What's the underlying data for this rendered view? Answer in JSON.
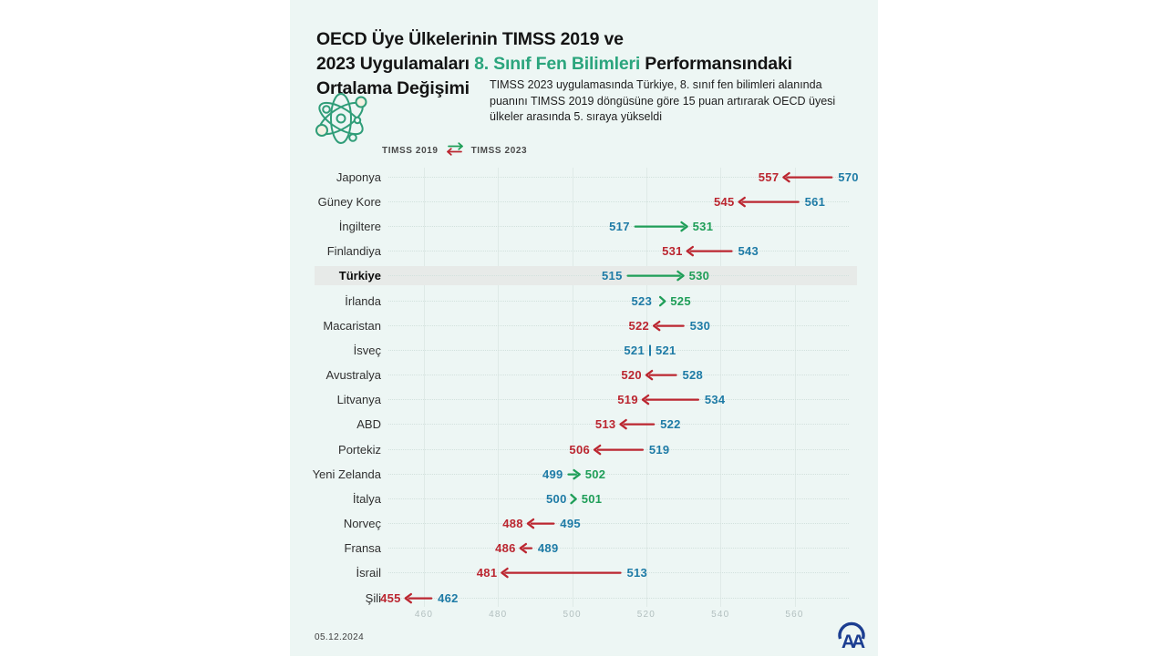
{
  "header": {
    "title_line1": "OECD Üye Ülkelerinin TIMSS 2019 ve",
    "title_line2_pre": "2023 Uygulamaları ",
    "title_line2_highlight": "8. Sınıf Fen Bilimleri",
    "title_line2_post": " Performansındaki",
    "title_line3": "Ortalama Değişimi",
    "subtitle": "TIMSS 2023 uygulamasında Türkiye, 8. sınıf fen bilimleri alanında puanını TIMSS 2019 döngüsüne göre 15 puan artırarak OECD üyesi ülkeler arasında 5. sıraya yükseldi"
  },
  "legend": {
    "left_label": "TIMSS 2019",
    "right_label": "TIMSS 2023",
    "icon": "swap-arrows-icon"
  },
  "footer": {
    "date": "05.12.2024",
    "agency_logo_text": "AA"
  },
  "colors": {
    "card_bg": "#edf6f4",
    "title_green": "#2ba57d",
    "value_2019_blue": "#1e7ba6",
    "increase_green": "#1f9e58",
    "decrease_red": "#bb2630",
    "highlight_band": "#e7eae8",
    "logo_navy": "#1c3e91",
    "atom_green": "#2f9d78"
  },
  "chart_data": {
    "type": "dumbbell-arrow",
    "title": "OECD Üye Ülkelerinin TIMSS 2019 ve 2023 Uygulamaları 8. Sınıf Fen Bilimleri Performansındaki Ortalama Değişimi",
    "series_labels": [
      "TIMSS 2019",
      "TIMSS 2023"
    ],
    "x_ticks": [
      460,
      480,
      500,
      520,
      540,
      560
    ],
    "xlim": [
      450,
      578
    ],
    "grid": "vertical-light",
    "highlight_country": "Türkiye",
    "rows": [
      {
        "country": "Japonya",
        "timss2019": 570,
        "timss2023": 557
      },
      {
        "country": "Güney Kore",
        "timss2019": 561,
        "timss2023": 545
      },
      {
        "country": "İngiltere",
        "timss2019": 517,
        "timss2023": 531
      },
      {
        "country": "Finlandiya",
        "timss2019": 543,
        "timss2023": 531
      },
      {
        "country": "Türkiye",
        "timss2019": 515,
        "timss2023": 530
      },
      {
        "country": "İrlanda",
        "timss2019": 523,
        "timss2023": 525
      },
      {
        "country": "Macaristan",
        "timss2019": 530,
        "timss2023": 522
      },
      {
        "country": "İsveç",
        "timss2019": 521,
        "timss2023": 521
      },
      {
        "country": "Avustralya",
        "timss2019": 528,
        "timss2023": 520
      },
      {
        "country": "Litvanya",
        "timss2019": 534,
        "timss2023": 519
      },
      {
        "country": "ABD",
        "timss2019": 522,
        "timss2023": 513
      },
      {
        "country": "Portekiz",
        "timss2019": 519,
        "timss2023": 506
      },
      {
        "country": "Yeni Zelanda",
        "timss2019": 499,
        "timss2023": 502
      },
      {
        "country": "İtalya",
        "timss2019": 500,
        "timss2023": 501
      },
      {
        "country": "Norveç",
        "timss2019": 495,
        "timss2023": 488
      },
      {
        "country": "Fransa",
        "timss2019": 489,
        "timss2023": 486
      },
      {
        "country": "İsrail",
        "timss2019": 513,
        "timss2023": 481
      },
      {
        "country": "Şili",
        "timss2019": 462,
        "timss2023": 455
      }
    ]
  }
}
